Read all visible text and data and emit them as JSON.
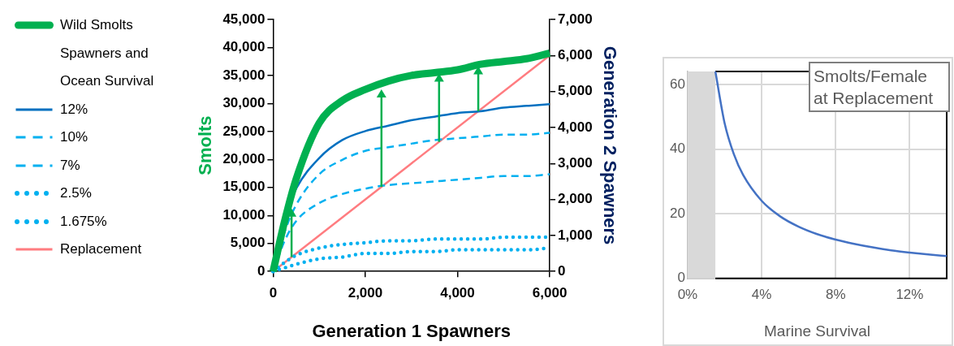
{
  "chart_data": [
    {
      "type": "line",
      "xlabel": "Generation 1 Spawners",
      "ylabel": "Smolts",
      "y2label": "Generation 2 Spawners",
      "legend_title": "Spawners and Ocean Survival",
      "legend": "left",
      "grid": false,
      "x": [
        0,
        250,
        500,
        1000,
        1500,
        2000,
        2500,
        3000,
        3500,
        4000,
        4500,
        5000,
        5500,
        6000
      ],
      "xlim": [
        0,
        6000
      ],
      "xticks": [
        0,
        {
          "value": 2000,
          "label": "2,000"
        },
        {
          "value": 4000,
          "label": "4,000"
        },
        {
          "value": 6000,
          "label": "6,000"
        }
      ],
      "ylim": [
        0,
        45000
      ],
      "yticks": [
        0,
        {
          "value": 5000,
          "label": "5,000"
        },
        {
          "value": 10000,
          "label": "10,000"
        },
        {
          "value": 15000,
          "label": "15,000"
        },
        {
          "value": 20000,
          "label": "20,000"
        },
        {
          "value": 25000,
          "label": "25,000"
        },
        {
          "value": 30000,
          "label": "30,000"
        },
        {
          "value": 35000,
          "label": "35,000"
        },
        {
          "value": 40000,
          "label": "40,000"
        },
        {
          "value": 45000,
          "label": "45,000"
        }
      ],
      "y2lim": [
        0,
        7000
      ],
      "y2ticks": [
        0,
        {
          "value": 1000,
          "label": "1,000"
        },
        {
          "value": 2000,
          "label": "2,000"
        },
        {
          "value": 3000,
          "label": "3,000"
        },
        {
          "value": 4000,
          "label": "4,000"
        },
        {
          "value": 5000,
          "label": "5,000"
        },
        {
          "value": 6000,
          "label": "6,000"
        },
        {
          "value": 7000,
          "label": "7,000"
        }
      ],
      "series": [
        {
          "name": "Wild Smolts",
          "color": "#00b050",
          "line_style": "solid",
          "values": [
            0,
            9000,
            16500,
            26500,
            30500,
            32500,
            34000,
            35000,
            35500,
            36000,
            37000,
            37500,
            38000,
            39000
          ]
        },
        {
          "name": "12%",
          "color": "#0070c0",
          "axis": "y2",
          "line_style": "solid",
          "values": [
            0,
            1500,
            2300,
            3150,
            3650,
            3900,
            4050,
            4200,
            4300,
            4400,
            4450,
            4550,
            4600,
            4650
          ]
        },
        {
          "name": "10%",
          "color": "#00b0f0",
          "axis": "y2",
          "line_style": "dashed",
          "values": [
            0,
            1100,
            1850,
            2700,
            3100,
            3350,
            3450,
            3550,
            3650,
            3700,
            3750,
            3800,
            3800,
            3850
          ]
        },
        {
          "name": "7%",
          "color": "#00b0f0",
          "axis": "y2",
          "line_style": "dashed",
          "values": [
            0,
            850,
            1400,
            1900,
            2150,
            2300,
            2400,
            2450,
            2500,
            2550,
            2600,
            2650,
            2650,
            2700
          ]
        },
        {
          "name": "2.5%",
          "color": "#00b0f0",
          "axis": "y2",
          "line_style": "dotted",
          "values": [
            0,
            250,
            450,
            650,
            750,
            800,
            850,
            850,
            900,
            900,
            900,
            950,
            950,
            950
          ]
        },
        {
          "name": "1.675%",
          "color": "#00b0f0",
          "axis": "y2",
          "line_style": "dotted",
          "values": [
            0,
            100,
            200,
            350,
            400,
            500,
            500,
            550,
            550,
            600,
            600,
            600,
            600,
            650
          ]
        },
        {
          "name": "Replacement",
          "color": "#ff7c80",
          "axis": "y2",
          "line_style": "solid",
          "x": [
            0,
            6000
          ],
          "values": [
            0,
            6000
          ]
        }
      ]
    },
    {
      "type": "line",
      "title": "Smolts/Female at Replacement",
      "xlabel": "Marine Survival",
      "grid": true,
      "x": [
        1.5,
        2,
        2.5,
        3,
        4,
        5,
        6,
        7,
        8,
        9,
        10,
        11,
        12,
        13,
        14
      ],
      "xlim": [
        0,
        14
      ],
      "xticks": [
        {
          "value": 0,
          "label": "0%"
        },
        {
          "value": 4,
          "label": "4%"
        },
        {
          "value": 8,
          "label": "8%"
        },
        {
          "value": 12,
          "label": "12%"
        }
      ],
      "ylim": [
        0,
        64
      ],
      "yticks": [
        0,
        20,
        40,
        60
      ],
      "bands": [
        {
          "axis": "x",
          "from": 0,
          "to": 1.5,
          "color": "#d9d9d9"
        }
      ],
      "series": [
        {
          "color": "#4472c4",
          "values": [
            64,
            48,
            38.4,
            32,
            24,
            19.2,
            16,
            13.7,
            12,
            10.7,
            9.6,
            8.7,
            8,
            7.4,
            6.9
          ]
        }
      ]
    }
  ]
}
